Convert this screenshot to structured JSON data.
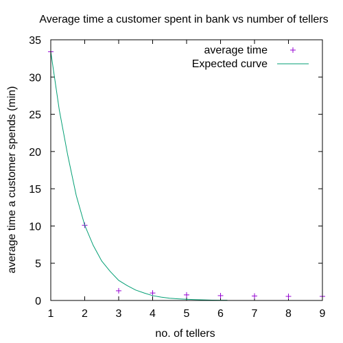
{
  "chart_data": {
    "type": "scatter",
    "title": "Average time a customer spent in bank vs number of tellers",
    "xlabel": "no. of tellers",
    "ylabel": "average time a customer spends (min)",
    "xlim": [
      1,
      9
    ],
    "ylim": [
      0,
      35
    ],
    "xticks": [
      1,
      2,
      3,
      4,
      5,
      6,
      7,
      8,
      9
    ],
    "yticks": [
      0,
      5,
      10,
      15,
      20,
      25,
      30,
      35
    ],
    "grid": false,
    "legend_position": "top-right",
    "series": [
      {
        "name": "average time",
        "kind": "points",
        "marker": "plus",
        "color": "#9400d3",
        "x": [
          1,
          2,
          3,
          4,
          5,
          6,
          7,
          8,
          9
        ],
        "y": [
          33.4,
          10.1,
          1.3,
          1.0,
          0.75,
          0.65,
          0.6,
          0.55,
          0.55
        ]
      },
      {
        "name": "Expected curve",
        "kind": "line",
        "color": "#009e73",
        "x": [
          1,
          1.25,
          1.5,
          1.75,
          2,
          2.25,
          2.5,
          2.75,
          3,
          3.25,
          3.5,
          3.75,
          4,
          4.25,
          4.5,
          4.75,
          5,
          5.25,
          5.5,
          5.75,
          6,
          6.2
        ],
        "y": [
          33.4,
          25.6,
          19.5,
          14.1,
          10.1,
          7.4,
          5.3,
          3.9,
          2.7,
          2.0,
          1.4,
          1.0,
          0.65,
          0.45,
          0.3,
          0.22,
          0.16,
          0.11,
          0.08,
          0.05,
          0.04,
          0.03
        ]
      }
    ]
  }
}
